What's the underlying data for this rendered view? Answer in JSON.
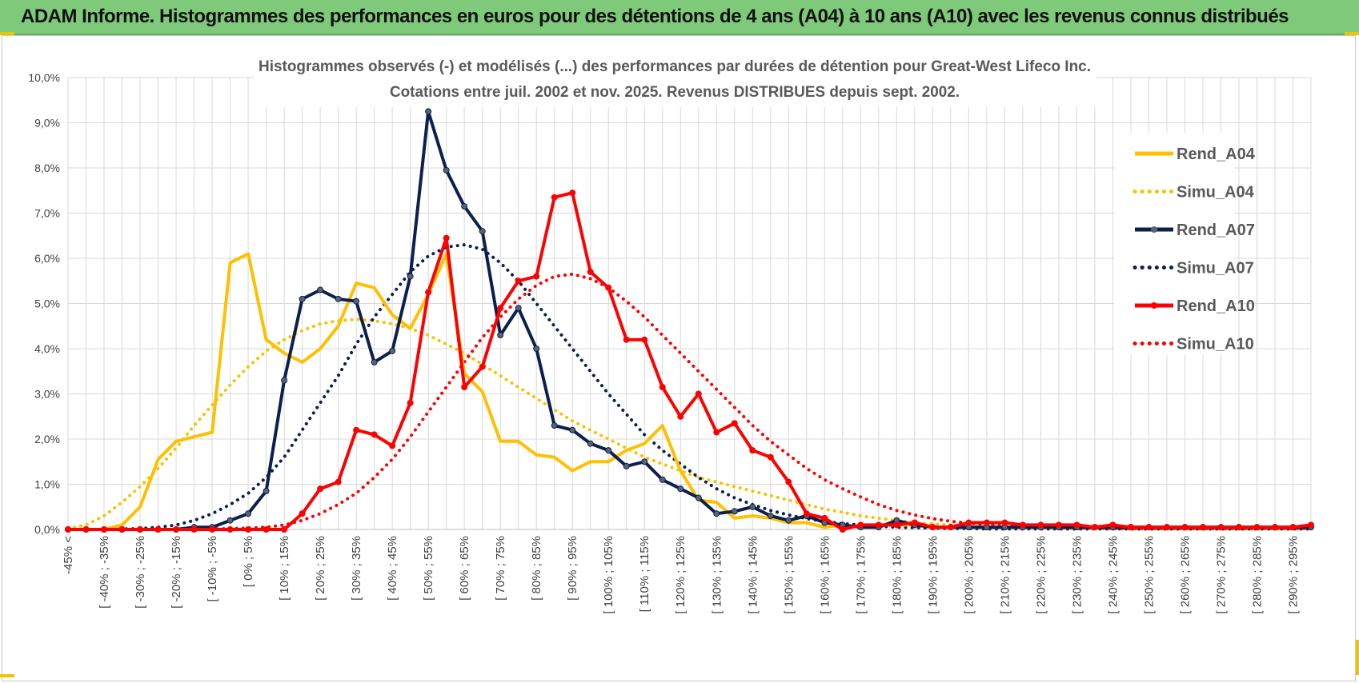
{
  "banner": {
    "title": "ADAM Informe. Histogrammes des performances en euros pour des détentions de 4 ans (A04) à 10 ans (A10) avec les revenus connus distribués"
  },
  "colors": {
    "banner_bg": "#7fc97a",
    "A04": "#ffc000",
    "A07": "#0d1f4f",
    "A10": "#ff0000",
    "A07_marker": "#5a6470",
    "A10_marker": "#ff0000",
    "grid": "#d9d9d9"
  },
  "chart_data": {
    "type": "line",
    "title": "Histogrammes observés (-) et modélisés (...) des performances par durées de détention pour Great-West Lifeco Inc.",
    "subtitle": "Cotations entre juil. 2002 et nov. 2025. Revenus DISTRIBUES depuis sept. 2002.",
    "ylim": [
      0,
      10
    ],
    "y_ticks": [
      "0,0%",
      "1,0%",
      "2,0%",
      "3,0%",
      "4,0%",
      "5,0%",
      "6,0%",
      "7,0%",
      "8,0%",
      "9,0%",
      "10,0%"
    ],
    "x_tick_labels": [
      "-45% <",
      "[ -40% ; -35%",
      "[ -30% ; -25%",
      "[ -20% ; -15%",
      "[ -10% ; -5%",
      "[ 0% ; 5%",
      "[ 10% ; 15%",
      "[ 20% ; 25%",
      "[ 30% ; 35%",
      "[ 40% ; 45%",
      "[ 50% ; 55%",
      "[ 60% ; 65%",
      "[ 70% ; 75%",
      "[ 80% ; 85%",
      "[ 90% ; 95%",
      "[ 100% ; 105%",
      "[ 110% ; 115%",
      "[ 120% ; 125%",
      "[ 130% ; 135%",
      "[ 140% ; 145%",
      "[ 150% ; 155%",
      "[ 160% ; 165%",
      "[ 170% ; 175%",
      "[ 180% ; 185%",
      "[ 190% ; 195%",
      "[ 200% ; 205%",
      "[ 210% ; 215%",
      "[ 220% ; 225%",
      "[ 230% ; 235%",
      "[ 240% ; 245%",
      "[ 250% ; 255%",
      "[ 260% ; 265%",
      "[ 270% ; 275%",
      "[ 280% ; 285%",
      "[ 290% ; 295%"
    ],
    "n_bins": 70,
    "series": [
      {
        "name": "Rend_A04",
        "style": "solid",
        "color_key": "A04",
        "markers": false,
        "values": [
          0,
          0,
          0,
          0.1,
          0.5,
          1.55,
          1.95,
          2.05,
          2.15,
          5.9,
          6.1,
          4.2,
          3.9,
          3.7,
          4.0,
          4.5,
          5.45,
          5.35,
          4.75,
          4.45,
          5.2,
          6.1,
          3.45,
          3.05,
          1.95,
          1.95,
          1.65,
          1.6,
          1.3,
          1.5,
          1.5,
          1.75,
          1.9,
          2.3,
          1.3,
          0.65,
          0.6,
          0.25,
          0.3,
          0.25,
          0.15,
          0.15,
          0.05,
          0.1,
          0.05,
          0.1,
          0.1,
          0.1,
          0.05,
          0.05,
          0.05,
          0.05,
          0.05,
          0.05,
          0.05,
          0.05,
          0.05,
          0.05,
          0.05,
          0.05,
          0.05,
          0.05,
          0.05,
          0.05,
          0.05,
          0.05,
          0.05,
          0.05,
          0.05,
          0.05
        ]
      },
      {
        "name": "Simu_A04",
        "style": "dotted",
        "color_key": "A04",
        "markers": false,
        "values": [
          0.02,
          0.1,
          0.3,
          0.6,
          0.95,
          1.35,
          1.8,
          2.3,
          2.75,
          3.2,
          3.6,
          3.95,
          4.2,
          4.4,
          4.55,
          4.62,
          4.65,
          4.62,
          4.55,
          4.45,
          4.3,
          4.1,
          3.9,
          3.65,
          3.4,
          3.15,
          2.9,
          2.65,
          2.4,
          2.2,
          2.0,
          1.8,
          1.6,
          1.45,
          1.3,
          1.15,
          1.05,
          0.95,
          0.85,
          0.75,
          0.65,
          0.55,
          0.45,
          0.38,
          0.3,
          0.25,
          0.2,
          0.15,
          0.12,
          0.1,
          0.08,
          0.06,
          0.05,
          0.04,
          0.03,
          0.03,
          0.02,
          0.02,
          0.02,
          0.01,
          0.01,
          0.01,
          0.01,
          0.01,
          0.01,
          0.01,
          0.01,
          0.01,
          0.01,
          0.01
        ]
      },
      {
        "name": "Rend_A07",
        "style": "solid",
        "color_key": "A07",
        "markers": true,
        "values": [
          0,
          0,
          0,
          0,
          0,
          0,
          0,
          0.05,
          0.05,
          0.2,
          0.35,
          0.85,
          3.3,
          5.1,
          5.3,
          5.1,
          5.05,
          3.7,
          3.95,
          5.6,
          9.25,
          7.95,
          7.15,
          6.6,
          4.3,
          4.9,
          4.0,
          2.3,
          2.2,
          1.9,
          1.75,
          1.4,
          1.5,
          1.1,
          0.9,
          0.7,
          0.35,
          0.4,
          0.5,
          0.3,
          0.2,
          0.3,
          0.15,
          0.1,
          0.05,
          0.05,
          0.2,
          0.1,
          0.05,
          0.05,
          0.05,
          0.05,
          0.05,
          0.05,
          0.05,
          0.05,
          0.05,
          0.05,
          0.05,
          0.05,
          0.05,
          0.05,
          0.05,
          0.05,
          0.05,
          0.05,
          0.05,
          0.05,
          0.05,
          0.05
        ]
      },
      {
        "name": "Simu_A07",
        "style": "dotted",
        "color_key": "A07",
        "markers": false,
        "values": [
          0,
          0,
          0,
          0.01,
          0.02,
          0.05,
          0.1,
          0.2,
          0.35,
          0.55,
          0.8,
          1.15,
          1.6,
          2.2,
          2.8,
          3.4,
          4.1,
          4.7,
          5.2,
          5.7,
          6.05,
          6.25,
          6.3,
          6.2,
          5.9,
          5.5,
          5.0,
          4.5,
          4.0,
          3.5,
          3.0,
          2.55,
          2.1,
          1.75,
          1.45,
          1.15,
          0.9,
          0.7,
          0.55,
          0.42,
          0.32,
          0.24,
          0.18,
          0.13,
          0.1,
          0.07,
          0.05,
          0.04,
          0.03,
          0.02,
          0.02,
          0.01,
          0.01,
          0.01,
          0.01,
          0.01,
          0.01,
          0.01,
          0.01,
          0.01,
          0.01,
          0.01,
          0.01,
          0.01,
          0.01,
          0.01,
          0.01,
          0.01,
          0.01,
          0.01
        ]
      },
      {
        "name": "Rend_A10",
        "style": "solid",
        "color_key": "A10",
        "markers": true,
        "values": [
          0,
          0,
          0,
          0,
          0,
          0,
          0,
          0,
          0,
          0,
          0,
          0,
          0,
          0.35,
          0.9,
          1.05,
          2.2,
          2.1,
          1.85,
          2.8,
          5.25,
          6.45,
          3.15,
          3.6,
          4.9,
          5.5,
          5.6,
          7.35,
          7.45,
          5.7,
          5.35,
          4.2,
          4.2,
          3.15,
          2.5,
          3.0,
          2.15,
          2.35,
          1.75,
          1.6,
          1.05,
          0.35,
          0.25,
          0.0,
          0.1,
          0.1,
          0.1,
          0.15,
          0.05,
          0.05,
          0.15,
          0.15,
          0.15,
          0.1,
          0.1,
          0.1,
          0.1,
          0.05,
          0.1,
          0.05,
          0.05,
          0.05,
          0.05,
          0.05,
          0.05,
          0.05,
          0.05,
          0.05,
          0.05,
          0.1
        ]
      },
      {
        "name": "Simu_A10",
        "style": "dotted",
        "color_key": "A10",
        "markers": false,
        "values": [
          0,
          0,
          0,
          0,
          0,
          0,
          0,
          0,
          0.01,
          0.02,
          0.03,
          0.05,
          0.1,
          0.2,
          0.35,
          0.55,
          0.8,
          1.15,
          1.55,
          2.05,
          2.6,
          3.15,
          3.7,
          4.25,
          4.7,
          5.1,
          5.4,
          5.6,
          5.65,
          5.55,
          5.35,
          5.05,
          4.7,
          4.3,
          3.9,
          3.5,
          3.1,
          2.7,
          2.3,
          1.95,
          1.65,
          1.35,
          1.1,
          0.9,
          0.72,
          0.55,
          0.42,
          0.32,
          0.24,
          0.18,
          0.14,
          0.1,
          0.08,
          0.06,
          0.05,
          0.04,
          0.03,
          0.03,
          0.02,
          0.02,
          0.02,
          0.02,
          0.02,
          0.02,
          0.02,
          0.02,
          0.02,
          0.02,
          0.02,
          0.02
        ]
      }
    ],
    "legend": {
      "position": "right",
      "entries": [
        "Rend_A04",
        "Simu_A04",
        "Rend_A07",
        "Simu_A07",
        "Rend_A10",
        "Simu_A10"
      ]
    }
  }
}
